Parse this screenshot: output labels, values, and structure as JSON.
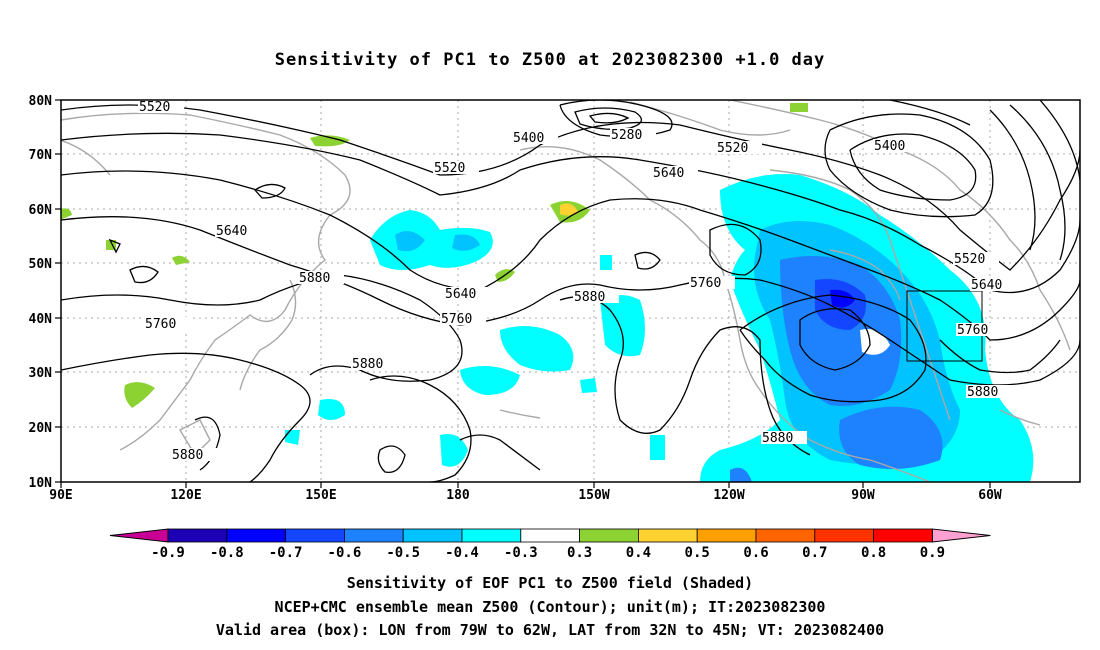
{
  "title": "Sensitivity of PC1 to Z500 at 2023082300 +1.0 day",
  "lat_labels": [
    "80N",
    "70N",
    "60N",
    "50N",
    "40N",
    "30N",
    "20N",
    "10N"
  ],
  "lon_labels": [
    "90E",
    "120E",
    "150E",
    "180",
    "150W",
    "120W",
    "90W",
    "60W"
  ],
  "contour_labels": {
    "c5520a": "5520",
    "c5400a": "5400",
    "c5280": "5280",
    "c5520b": "5520",
    "c5520c": "5520",
    "c5400b": "5400",
    "c5640a": "5640",
    "c5640b": "5640",
    "c5520d": "5520",
    "c5640c": "5640",
    "c5880a": "5880",
    "c5880b": "5880",
    "c5760a": "5760",
    "c5760b": "5760",
    "c5760c": "5760",
    "c5880c": "5880",
    "c5880d": "5880",
    "c5880e": "5880",
    "c5880f": "5880",
    "c5760d": "5760",
    "c5640d": "5640"
  },
  "colorbar": {
    "labels": [
      "-0.9",
      "-0.8",
      "-0.7",
      "-0.6",
      "-0.5",
      "-0.4",
      "-0.3",
      "0.3",
      "0.4",
      "0.5",
      "0.6",
      "0.7",
      "0.8",
      "0.9"
    ],
    "colors": [
      "#c80096",
      "#1e00b4",
      "#0000ff",
      "#1446ff",
      "#1e82ff",
      "#00c3ff",
      "#00ffff",
      "#ffffff",
      "#8cd232",
      "#ffd232",
      "#ffa000",
      "#ff6400",
      "#ff3200",
      "#ff0000",
      "#ffa0d2"
    ]
  },
  "captions": {
    "line1": "Sensitivity of EOF PC1 to Z500 field (Shaded)",
    "line2": "NCEP+CMC ensemble mean Z500 (Contour); unit(m); IT:2023082300",
    "line3": "Valid area (box): LON from 79W to 62W, LAT from 32N to 45N; VT: 2023082400"
  }
}
